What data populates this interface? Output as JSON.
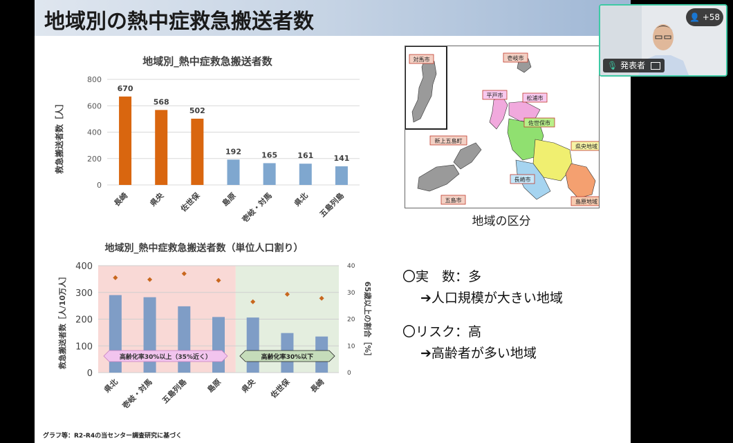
{
  "slide": {
    "title": "地域別の熱中症救急搬送者数",
    "footnote": "グラフ等：R2-R4の当センター調査研究に基づく"
  },
  "chart1": {
    "type": "bar",
    "title": "地域別_熱中症救急搬送者数",
    "ylabel": "救急搬送者数［人］",
    "ylim": [
      0,
      800
    ],
    "yticks": [
      0,
      200,
      400,
      600,
      800
    ],
    "categories": [
      "長崎",
      "県央",
      "佐世保",
      "島原",
      "壱岐・対馬",
      "県北",
      "五島列島"
    ],
    "values": [
      670,
      568,
      502,
      192,
      165,
      161,
      141
    ],
    "colors": [
      "#d9660f",
      "#d9660f",
      "#d9660f",
      "#7fa7cf",
      "#7fa7cf",
      "#7fa7cf",
      "#7fa7cf"
    ]
  },
  "chart2": {
    "type": "bar",
    "title": "地域別_熱中症救急搬送者数（単位人口割り）",
    "ylabel": "救急搬送者数［人/10万人］",
    "y2label": "65歳以上の割合［%］",
    "ylim": [
      0,
      400
    ],
    "yticks": [
      0,
      100,
      200,
      300,
      400
    ],
    "y2lim": [
      0,
      40
    ],
    "y2ticks": [
      0,
      10,
      20,
      30,
      40
    ],
    "categories": [
      "県北",
      "壱岐・対馬",
      "五島列島",
      "島原",
      "県央",
      "佐世保",
      "長崎"
    ],
    "values": [
      290,
      282,
      248,
      208,
      206,
      148,
      135
    ],
    "elderly_ratio": [
      35.5,
      34.8,
      37.0,
      34.5,
      26.5,
      29.3,
      27.8
    ],
    "bar_color": "#7f9dc6",
    "marker_color": "#c8671e",
    "band_high": "高齢化率30%以上（35%近く）",
    "band_low": "高齢化率30%以下",
    "band_high_color": "#f9d9d6",
    "band_low_color": "#e4eedf"
  },
  "map": {
    "caption": "地域の区分",
    "labels": [
      "対馬市",
      "壱岐市",
      "平戸市",
      "松浦市",
      "佐世保市",
      "新上五島町",
      "県央地域",
      "長崎市",
      "五島市",
      "島原地域"
    ]
  },
  "bullets": {
    "line1": "〇実　数：多",
    "line2": "➔人口規模が大きい地域",
    "line3": "〇リスク：高",
    "line4": "➔高齢者が多い地域"
  },
  "meeting": {
    "presenter_label": "発表者",
    "participant_count": "+58"
  }
}
